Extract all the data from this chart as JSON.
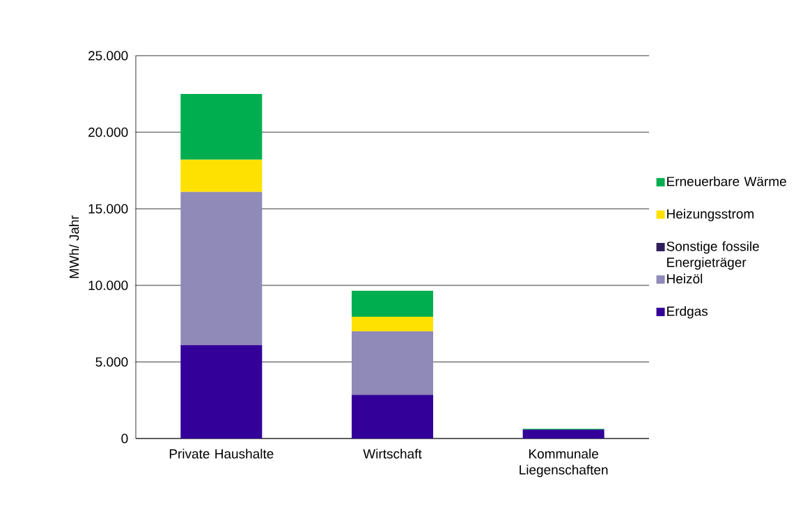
{
  "chart_data": {
    "type": "bar",
    "stacked": true,
    "categories": [
      "Private Haushalte",
      "Wirtschaft",
      "Kommunale Liegenschaften"
    ],
    "series": [
      {
        "name": "Erdgas",
        "color": "#330099",
        "values": [
          6100,
          2850,
          580
        ]
      },
      {
        "name": "Heizöl",
        "color": "#8f8ab8",
        "values": [
          10000,
          4150,
          0
        ]
      },
      {
        "name": "Sonstige fossile Energieträger",
        "color": "#2e1f5a",
        "values": [
          0,
          0,
          0
        ]
      },
      {
        "name": "Heizungsstrom",
        "color": "#ffe100",
        "values": [
          2100,
          950,
          0
        ]
      },
      {
        "name": "Erneuerbare Wärme",
        "color": "#00ae4f",
        "values": [
          4300,
          1700,
          50
        ]
      }
    ],
    "ylabel": "MWh/ Jahr",
    "ylim": [
      0,
      25000
    ],
    "yticks": [
      {
        "value": 0,
        "label": "0"
      },
      {
        "value": 5000,
        "label": "5.000"
      },
      {
        "value": 10000,
        "label": "10.000"
      },
      {
        "value": 15000,
        "label": "15.000"
      },
      {
        "value": 20000,
        "label": "20.000"
      },
      {
        "value": 25000,
        "label": "25.000"
      }
    ],
    "grid": "y",
    "legend": "right"
  }
}
